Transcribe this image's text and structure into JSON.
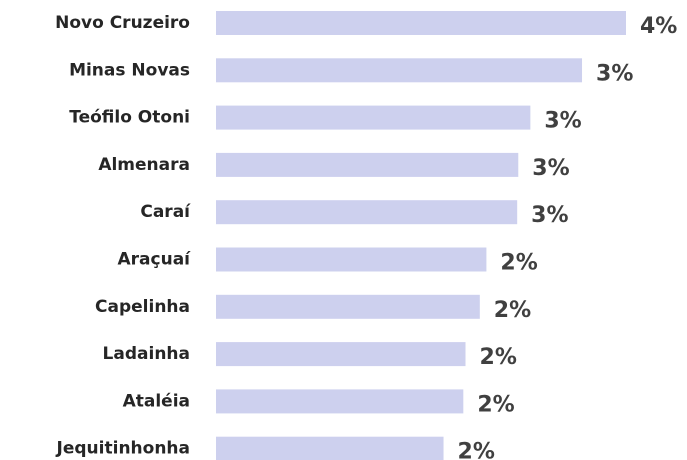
{
  "chart_data": {
    "type": "barh",
    "categories": [
      "Novo Cruzeiro",
      "Minas Novas",
      "Teófilo Otoni",
      "Almenara",
      "Caraí",
      "Araçuaí",
      "Capelinha",
      "Ladainha",
      "Ataléia",
      "Jequitinhonha"
    ],
    "values": [
      3.73,
      3.33,
      2.86,
      2.75,
      2.74,
      2.46,
      2.4,
      2.27,
      2.25,
      2.07
    ],
    "value_labels": [
      "4%",
      "3%",
      "3%",
      "3%",
      "3%",
      "2%",
      "2%",
      "2%",
      "2%",
      "2%"
    ],
    "color": "#cdd0ee"
  }
}
